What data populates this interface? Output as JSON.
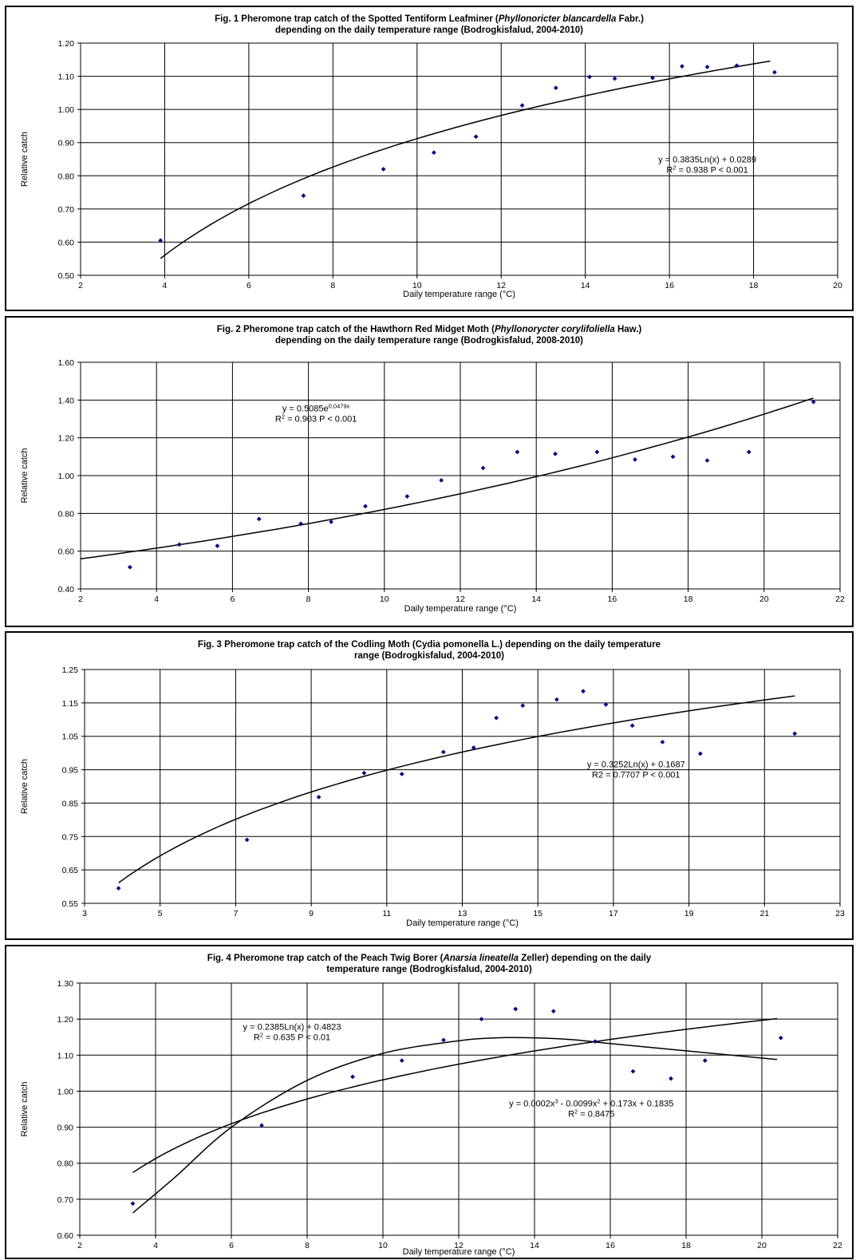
{
  "chart_data": [
    {
      "type": "scatter",
      "title_parts": [
        [
          {
            "t": "Fig. 1 Pheromone trap catch of the Spotted Tentiform Leafminer ("
          },
          {
            "t": "Phyllonoricter blancardella",
            "i": true
          },
          {
            "t": " Fabr.)"
          }
        ],
        [
          {
            "t": "depending on the daily temperature range (Bodrogkisfalud, 2004-2010)"
          }
        ]
      ],
      "xlabel": "Daily temperature range (°C)",
      "ylabel": "Relative catch",
      "xlim": [
        2,
        20
      ],
      "ylim": [
        0.5,
        1.2
      ],
      "xticks": [
        2,
        4,
        6,
        8,
        10,
        12,
        14,
        16,
        18,
        20
      ],
      "yticks": [
        0.5,
        0.6,
        0.7,
        0.8,
        0.9,
        1.0,
        1.1,
        1.2
      ],
      "ydec": 2,
      "grid": true,
      "x": [
        3.9,
        7.3,
        9.2,
        10.4,
        11.4,
        12.5,
        13.3,
        14.1,
        14.7,
        15.6,
        16.3,
        16.9,
        17.6,
        18.5
      ],
      "y": [
        0.605,
        0.74,
        0.82,
        0.87,
        0.918,
        1.012,
        1.065,
        1.098,
        1.093,
        1.095,
        1.13,
        1.128,
        1.132,
        1.112
      ],
      "trendlines": [
        {
          "kind": "log",
          "a": 0.3835,
          "b": 0.0289,
          "x0": 3.9,
          "x1": 18.4
        }
      ],
      "annotations": [
        {
          "lines": [
            [
              {
                "t": "y = 0.3835Ln(x) + 0.0289"
              }
            ],
            [
              {
                "t": "R"
              },
              {
                "t": "2",
                "sup": true
              },
              {
                "t": " = 0.938 P < 0.001"
              }
            ]
          ],
          "x": 16.9,
          "y": 0.84
        }
      ]
    },
    {
      "type": "scatter",
      "title_parts": [
        [
          {
            "t": "Fig. 2 Pheromone trap catch of the Hawthorn Red Midget Moth ("
          },
          {
            "t": "Phyllonorycter corylifoliella",
            "i": true
          },
          {
            "t": " Haw.)"
          }
        ],
        [
          {
            "t": "depending on the daily temperature range (Bodrogkisfalud, 2008-2010)"
          }
        ]
      ],
      "xlabel": "Daily temperature range (°C)",
      "ylabel": "Relative catch",
      "xlim": [
        2,
        22
      ],
      "ylim": [
        0.4,
        1.6
      ],
      "xticks": [
        2,
        4,
        6,
        8,
        10,
        12,
        14,
        16,
        18,
        20,
        22
      ],
      "yticks": [
        0.4,
        0.6,
        0.8,
        1.0,
        1.2,
        1.4,
        1.6
      ],
      "ydec": 2,
      "grid": true,
      "x": [
        3.3,
        4.6,
        5.6,
        6.7,
        7.8,
        8.6,
        9.5,
        10.6,
        11.5,
        12.6,
        13.5,
        14.5,
        15.6,
        16.6,
        17.6,
        18.5,
        19.6,
        21.3
      ],
      "y": [
        0.515,
        0.635,
        0.628,
        0.77,
        0.745,
        0.755,
        0.838,
        0.89,
        0.975,
        1.04,
        1.125,
        1.115,
        1.125,
        1.085,
        1.1,
        1.08,
        1.125,
        1.39
      ],
      "trendlines": [
        {
          "kind": "exp",
          "a": 0.5085,
          "b": 0.0479,
          "x0": 2.0,
          "x1": 21.3
        }
      ],
      "annotations": [
        {
          "lines": [
            [
              {
                "t": "y = 0.5085e"
              },
              {
                "t": "0.0479x",
                "sup": true
              }
            ],
            [
              {
                "t": "R"
              },
              {
                "t": "2",
                "sup": true
              },
              {
                "t": " = 0.903 P < 0.001"
              }
            ]
          ],
          "x": 8.2,
          "y": 1.34
        }
      ]
    },
    {
      "type": "scatter",
      "title_parts": [
        [
          {
            "t": "Fig. 3 Pheromone trap catch of the Codling Moth (Cydia pomonella L.) depending on the daily temperature"
          }
        ],
        [
          {
            "t": "range (Bodrogkisfalud, 2004-2010)"
          }
        ]
      ],
      "xlabel": "Daily temperature range (°C)",
      "ylabel": "Relative catch",
      "xlim": [
        3,
        23
      ],
      "ylim": [
        0.55,
        1.25
      ],
      "xticks": [
        3,
        5,
        7,
        9,
        11,
        13,
        15,
        17,
        19,
        21,
        23
      ],
      "yticks": [
        0.55,
        0.65,
        0.75,
        0.85,
        0.95,
        1.05,
        1.15,
        1.25
      ],
      "ydec": 2,
      "grid": true,
      "gridx": [
        3,
        5,
        7,
        9,
        11,
        13,
        15,
        17,
        19,
        21,
        23
      ],
      "x": [
        3.9,
        7.3,
        9.2,
        10.4,
        11.4,
        12.5,
        13.3,
        13.9,
        14.6,
        15.5,
        16.2,
        16.8,
        17.5,
        18.3,
        19.3,
        21.8
      ],
      "y": [
        0.595,
        0.74,
        0.868,
        0.94,
        0.937,
        1.003,
        1.016,
        1.105,
        1.142,
        1.16,
        1.185,
        1.145,
        1.082,
        1.033,
        0.998,
        1.058
      ],
      "trendlines": [
        {
          "kind": "log",
          "a": 0.3252,
          "b": 0.1687,
          "x0": 3.9,
          "x1": 21.8
        }
      ],
      "annotations": [
        {
          "lines": [
            [
              {
                "t": "y = 0.3252Ln(x) + 0.1687"
              }
            ],
            [
              {
                "t": "R2 = 0.7707 P < 0.001"
              }
            ]
          ],
          "x": 17.6,
          "y": 0.957
        }
      ]
    },
    {
      "type": "scatter",
      "title_parts": [
        [
          {
            "t": "Fig. 4 Pheromone trap catch of the Peach Twig Borer ("
          },
          {
            "t": "Anarsia lineatella",
            "i": true
          },
          {
            "t": " Zeller) depending on the daily"
          }
        ],
        [
          {
            "t": "temperature range (Bodrogkisfalud, 2004-2010)"
          }
        ]
      ],
      "xlabel": "Daily temperature range (°C)",
      "ylabel": "Relative catch",
      "xlim": [
        2,
        22
      ],
      "ylim": [
        0.6,
        1.3
      ],
      "xticks": [
        2,
        4,
        6,
        8,
        10,
        12,
        14,
        16,
        18,
        20,
        22
      ],
      "yticks": [
        0.6,
        0.7,
        0.8,
        0.9,
        1.0,
        1.1,
        1.2,
        1.3
      ],
      "ydec": 2,
      "grid": true,
      "x": [
        3.4,
        6.8,
        9.2,
        10.5,
        11.6,
        12.6,
        13.5,
        14.5,
        15.6,
        16.6,
        17.6,
        18.5,
        20.5
      ],
      "y": [
        0.688,
        0.905,
        1.04,
        1.085,
        1.142,
        1.2,
        1.228,
        1.222,
        1.138,
        1.055,
        1.035,
        1.085,
        1.148
      ],
      "trendlines": [
        {
          "kind": "log",
          "a": 0.2385,
          "b": 0.4823,
          "x0": 3.4,
          "x1": 20.4
        },
        {
          "kind": "curve",
          "pts": [
            [
              3.4,
              0.662
            ],
            [
              4.5,
              0.76
            ],
            [
              6.0,
              0.9
            ],
            [
              8.0,
              1.03
            ],
            [
              10.0,
              1.105
            ],
            [
              12.0,
              1.14
            ],
            [
              13.0,
              1.148
            ],
            [
              14.0,
              1.148
            ],
            [
              15.0,
              1.143
            ],
            [
              16.0,
              1.132
            ],
            [
              18.0,
              1.112
            ],
            [
              20.4,
              1.088
            ]
          ]
        }
      ],
      "annotations": [
        {
          "lines": [
            [
              {
                "t": "y = 0.2385Ln(x) + 0.4823"
              }
            ],
            [
              {
                "t": "R"
              },
              {
                "t": "2",
                "sup": true
              },
              {
                "t": " = 0.635 P < 0.01"
              }
            ]
          ],
          "x": 7.6,
          "y": 1.17
        },
        {
          "lines": [
            [
              {
                "t": "y = 0.0002x"
              },
              {
                "t": "3",
                "sup": true
              },
              {
                "t": " - 0.0099x"
              },
              {
                "t": "2",
                "sup": true
              },
              {
                "t": " + 0.173x + 0.1835"
              }
            ],
            [
              {
                "t": "R"
              },
              {
                "t": "2",
                "sup": true
              },
              {
                "t": " = 0.8475"
              }
            ]
          ],
          "x": 15.5,
          "y": 0.958
        }
      ]
    }
  ]
}
